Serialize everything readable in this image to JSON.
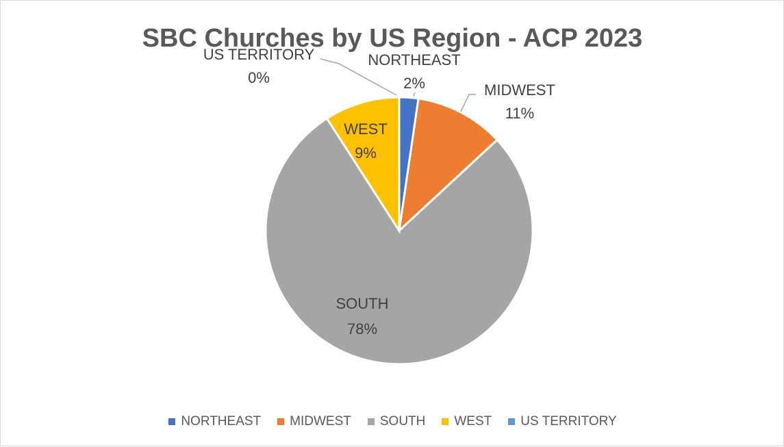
{
  "chart_data": {
    "type": "pie",
    "title": "SBC Churches by US Region - ACP 2023",
    "categories": [
      "NORTHEAST",
      "MIDWEST",
      "SOUTH",
      "WEST",
      "US TERRITORY"
    ],
    "values": [
      2,
      11,
      78,
      9,
      0
    ],
    "value_labels": [
      "2%",
      "11%",
      "78%",
      "9%",
      "0%"
    ],
    "colors": [
      "#4472c4",
      "#ed7d31",
      "#a5a5a5",
      "#ffc000",
      "#5b9bd5"
    ],
    "legend_position": "bottom"
  }
}
